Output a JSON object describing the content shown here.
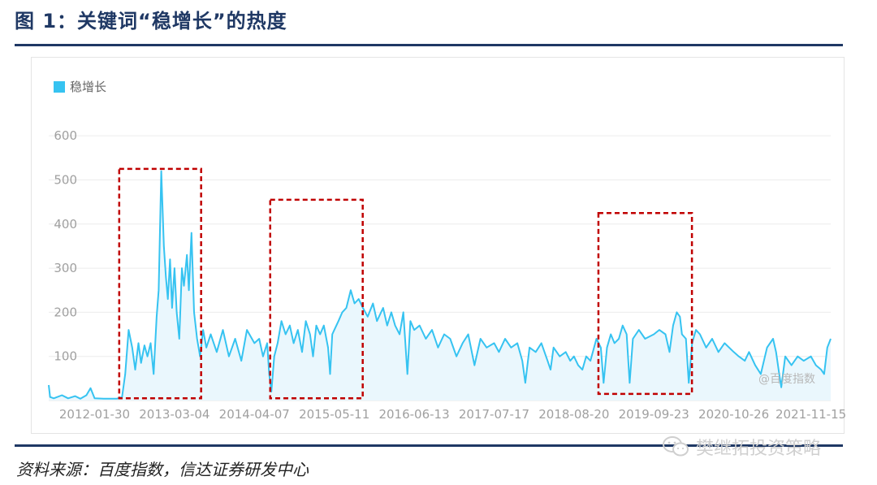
{
  "figure": {
    "title": "图 1：关键词“稳增长”的热度",
    "source": "资料来源：百度指数，信达证券研发中心",
    "watermark_index": "@百度指数",
    "watermark_wechat": "樊继拓投资策略"
  },
  "chart_data": {
    "type": "area",
    "legend": "top-left",
    "grid": true,
    "series": [
      {
        "name": "稳增长",
        "color": "#36c3f1"
      }
    ],
    "y_ticks": [
      100,
      200,
      300,
      400,
      500,
      600
    ],
    "ylim": [
      0,
      650
    ],
    "x_tick_labels": [
      "2012-01-30",
      "2013-03-04",
      "2014-04-07",
      "2015-05-11",
      "2016-06-13",
      "2017-07-17",
      "2018-08-20",
      "2019-09-23",
      "2020-10-26",
      "2021-11-15"
    ],
    "x_start": "2011-06-15",
    "x_end": "2022-02-22",
    "points": [
      [
        "2011-06-15",
        35
      ],
      [
        "2011-06-22",
        8
      ],
      [
        "2011-07-10",
        5
      ],
      [
        "2011-08-20",
        12
      ],
      [
        "2011-09-20",
        5
      ],
      [
        "2011-10-25",
        10
      ],
      [
        "2011-11-20",
        4
      ],
      [
        "2011-12-20",
        12
      ],
      [
        "2012-01-10",
        28
      ],
      [
        "2012-01-30",
        5
      ],
      [
        "2012-03-15",
        4
      ],
      [
        "2012-05-20",
        4
      ],
      [
        "2012-06-15",
        8
      ],
      [
        "2012-07-01",
        60
      ],
      [
        "2012-07-18",
        160
      ],
      [
        "2012-08-05",
        120
      ],
      [
        "2012-08-20",
        70
      ],
      [
        "2012-09-05",
        130
      ],
      [
        "2012-09-18",
        85
      ],
      [
        "2012-10-05",
        125
      ],
      [
        "2012-10-20",
        100
      ],
      [
        "2012-11-05",
        130
      ],
      [
        "2012-11-20",
        60
      ],
      [
        "2012-12-05",
        190
      ],
      [
        "2012-12-15",
        250
      ],
      [
        "2012-12-28",
        520
      ],
      [
        "2013-01-10",
        350
      ],
      [
        "2013-01-20",
        280
      ],
      [
        "2013-01-30",
        230
      ],
      [
        "2013-02-10",
        320
      ],
      [
        "2013-02-20",
        210
      ],
      [
        "2013-03-04",
        300
      ],
      [
        "2013-03-15",
        200
      ],
      [
        "2013-03-28",
        140
      ],
      [
        "2013-04-10",
        300
      ],
      [
        "2013-04-20",
        260
      ],
      [
        "2013-05-05",
        330
      ],
      [
        "2013-05-15",
        250
      ],
      [
        "2013-05-28",
        380
      ],
      [
        "2013-06-10",
        200
      ],
      [
        "2013-06-25",
        140
      ],
      [
        "2013-07-10",
        100
      ],
      [
        "2013-07-25",
        160
      ],
      [
        "2013-08-10",
        120
      ],
      [
        "2013-09-01",
        150
      ],
      [
        "2013-10-01",
        110
      ],
      [
        "2013-11-01",
        160
      ],
      [
        "2013-12-01",
        100
      ],
      [
        "2014-01-01",
        140
      ],
      [
        "2014-02-01",
        90
      ],
      [
        "2014-03-01",
        160
      ],
      [
        "2014-04-07",
        130
      ],
      [
        "2014-05-01",
        140
      ],
      [
        "2014-05-20",
        100
      ],
      [
        "2014-06-10",
        130
      ],
      [
        "2014-06-20",
        60
      ],
      [
        "2014-07-01",
        20
      ],
      [
        "2014-07-15",
        100
      ],
      [
        "2014-08-01",
        130
      ],
      [
        "2014-08-20",
        180
      ],
      [
        "2014-09-10",
        150
      ],
      [
        "2014-10-01",
        170
      ],
      [
        "2014-10-20",
        130
      ],
      [
        "2014-11-10",
        160
      ],
      [
        "2014-12-01",
        110
      ],
      [
        "2014-12-20",
        180
      ],
      [
        "2015-01-10",
        150
      ],
      [
        "2015-01-25",
        100
      ],
      [
        "2015-02-10",
        170
      ],
      [
        "2015-03-01",
        150
      ],
      [
        "2015-03-20",
        170
      ],
      [
        "2015-04-10",
        120
      ],
      [
        "2015-04-20",
        60
      ],
      [
        "2015-05-01",
        150
      ],
      [
        "2015-05-11",
        160
      ],
      [
        "2015-06-01",
        180
      ],
      [
        "2015-06-20",
        200
      ],
      [
        "2015-07-10",
        210
      ],
      [
        "2015-08-01",
        250
      ],
      [
        "2015-08-20",
        220
      ],
      [
        "2015-09-10",
        230
      ],
      [
        "2015-10-01",
        210
      ],
      [
        "2015-10-25",
        190
      ],
      [
        "2015-11-20",
        220
      ],
      [
        "2015-12-10",
        180
      ],
      [
        "2016-01-10",
        210
      ],
      [
        "2016-01-30",
        170
      ],
      [
        "2016-02-20",
        200
      ],
      [
        "2016-03-10",
        170
      ],
      [
        "2016-04-01",
        150
      ],
      [
        "2016-04-20",
        200
      ],
      [
        "2016-05-10",
        60
      ],
      [
        "2016-05-25",
        180
      ],
      [
        "2016-06-13",
        160
      ],
      [
        "2016-07-10",
        170
      ],
      [
        "2016-08-10",
        140
      ],
      [
        "2016-09-10",
        160
      ],
      [
        "2016-10-10",
        120
      ],
      [
        "2016-11-10",
        150
      ],
      [
        "2016-12-10",
        140
      ],
      [
        "2017-01-10",
        100
      ],
      [
        "2017-02-10",
        130
      ],
      [
        "2017-03-10",
        150
      ],
      [
        "2017-04-10",
        80
      ],
      [
        "2017-05-10",
        140
      ],
      [
        "2017-06-10",
        120
      ],
      [
        "2017-07-17",
        130
      ],
      [
        "2017-08-10",
        110
      ],
      [
        "2017-09-10",
        140
      ],
      [
        "2017-10-10",
        120
      ],
      [
        "2017-11-10",
        130
      ],
      [
        "2017-12-05",
        90
      ],
      [
        "2017-12-20",
        40
      ],
      [
        "2018-01-10",
        120
      ],
      [
        "2018-02-10",
        110
      ],
      [
        "2018-03-10",
        130
      ],
      [
        "2018-04-10",
        90
      ],
      [
        "2018-04-25",
        70
      ],
      [
        "2018-05-10",
        120
      ],
      [
        "2018-06-10",
        100
      ],
      [
        "2018-07-10",
        110
      ],
      [
        "2018-08-01",
        90
      ],
      [
        "2018-08-20",
        100
      ],
      [
        "2018-09-10",
        80
      ],
      [
        "2018-10-01",
        70
      ],
      [
        "2018-10-20",
        100
      ],
      [
        "2018-11-10",
        90
      ],
      [
        "2018-12-10",
        140
      ],
      [
        "2019-01-01",
        120
      ],
      [
        "2019-01-15",
        40
      ],
      [
        "2019-02-01",
        120
      ],
      [
        "2019-02-20",
        150
      ],
      [
        "2019-03-10",
        130
      ],
      [
        "2019-04-01",
        140
      ],
      [
        "2019-04-20",
        170
      ],
      [
        "2019-05-10",
        150
      ],
      [
        "2019-05-25",
        40
      ],
      [
        "2019-06-10",
        140
      ],
      [
        "2019-07-10",
        160
      ],
      [
        "2019-08-10",
        140
      ],
      [
        "2019-09-23",
        150
      ],
      [
        "2019-10-20",
        160
      ],
      [
        "2019-11-20",
        150
      ],
      [
        "2019-12-10",
        110
      ],
      [
        "2019-12-28",
        170
      ],
      [
        "2020-01-15",
        200
      ],
      [
        "2020-01-31",
        190
      ],
      [
        "2020-02-10",
        150
      ],
      [
        "2020-03-01",
        140
      ],
      [
        "2020-03-15",
        40
      ],
      [
        "2020-04-01",
        130
      ],
      [
        "2020-04-20",
        160
      ],
      [
        "2020-05-10",
        150
      ],
      [
        "2020-06-10",
        120
      ],
      [
        "2020-07-10",
        140
      ],
      [
        "2020-08-10",
        110
      ],
      [
        "2020-09-10",
        130
      ],
      [
        "2020-10-26",
        110
      ],
      [
        "2020-11-20",
        100
      ],
      [
        "2020-12-20",
        90
      ],
      [
        "2021-01-10",
        110
      ],
      [
        "2021-02-10",
        80
      ],
      [
        "2021-03-10",
        60
      ],
      [
        "2021-04-10",
        120
      ],
      [
        "2021-05-10",
        140
      ],
      [
        "2021-05-25",
        110
      ],
      [
        "2021-06-10",
        60
      ],
      [
        "2021-06-20",
        30
      ],
      [
        "2021-07-10",
        100
      ],
      [
        "2021-08-10",
        80
      ],
      [
        "2021-09-10",
        100
      ],
      [
        "2021-10-10",
        90
      ],
      [
        "2021-11-15",
        100
      ],
      [
        "2021-12-10",
        80
      ],
      [
        "2022-01-05",
        70
      ],
      [
        "2022-01-20",
        60
      ],
      [
        "2022-02-05",
        120
      ],
      [
        "2022-02-22",
        140
      ]
    ],
    "annotations": [
      {
        "type": "dashed-box",
        "x0": "2012-06-01",
        "x1": "2013-07-15",
        "y0": 5,
        "y1": 525,
        "color": "#c00000"
      },
      {
        "type": "dashed-box",
        "x0": "2014-06-25",
        "x1": "2015-09-30",
        "y0": 5,
        "y1": 455,
        "color": "#c00000"
      },
      {
        "type": "dashed-box",
        "x0": "2018-12-20",
        "x1": "2020-03-31",
        "y0": 15,
        "y1": 425,
        "color": "#c00000"
      }
    ]
  }
}
